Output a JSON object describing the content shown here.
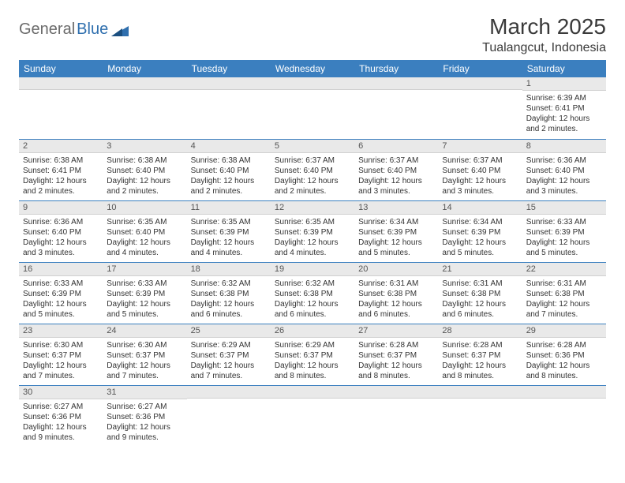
{
  "logo": {
    "part1": "General",
    "part2": "Blue"
  },
  "title": "March 2025",
  "location": "Tualangcut, Indonesia",
  "weekdays": [
    "Sunday",
    "Monday",
    "Tuesday",
    "Wednesday",
    "Thursday",
    "Friday",
    "Saturday"
  ],
  "colors": {
    "header_bg": "#3b7fbf",
    "header_text": "#ffffff",
    "daynum_bg": "#e9e9e9",
    "row_border": "#3b7fbf",
    "logo_gray": "#6b6b6b",
    "logo_blue": "#2f6fae"
  },
  "grid": [
    [
      {
        "day": "",
        "lines": []
      },
      {
        "day": "",
        "lines": []
      },
      {
        "day": "",
        "lines": []
      },
      {
        "day": "",
        "lines": []
      },
      {
        "day": "",
        "lines": []
      },
      {
        "day": "",
        "lines": []
      },
      {
        "day": "1",
        "lines": [
          "Sunrise: 6:39 AM",
          "Sunset: 6:41 PM",
          "Daylight: 12 hours and 2 minutes."
        ]
      }
    ],
    [
      {
        "day": "2",
        "lines": [
          "Sunrise: 6:38 AM",
          "Sunset: 6:41 PM",
          "Daylight: 12 hours and 2 minutes."
        ]
      },
      {
        "day": "3",
        "lines": [
          "Sunrise: 6:38 AM",
          "Sunset: 6:40 PM",
          "Daylight: 12 hours and 2 minutes."
        ]
      },
      {
        "day": "4",
        "lines": [
          "Sunrise: 6:38 AM",
          "Sunset: 6:40 PM",
          "Daylight: 12 hours and 2 minutes."
        ]
      },
      {
        "day": "5",
        "lines": [
          "Sunrise: 6:37 AM",
          "Sunset: 6:40 PM",
          "Daylight: 12 hours and 2 minutes."
        ]
      },
      {
        "day": "6",
        "lines": [
          "Sunrise: 6:37 AM",
          "Sunset: 6:40 PM",
          "Daylight: 12 hours and 3 minutes."
        ]
      },
      {
        "day": "7",
        "lines": [
          "Sunrise: 6:37 AM",
          "Sunset: 6:40 PM",
          "Daylight: 12 hours and 3 minutes."
        ]
      },
      {
        "day": "8",
        "lines": [
          "Sunrise: 6:36 AM",
          "Sunset: 6:40 PM",
          "Daylight: 12 hours and 3 minutes."
        ]
      }
    ],
    [
      {
        "day": "9",
        "lines": [
          "Sunrise: 6:36 AM",
          "Sunset: 6:40 PM",
          "Daylight: 12 hours and 3 minutes."
        ]
      },
      {
        "day": "10",
        "lines": [
          "Sunrise: 6:35 AM",
          "Sunset: 6:40 PM",
          "Daylight: 12 hours and 4 minutes."
        ]
      },
      {
        "day": "11",
        "lines": [
          "Sunrise: 6:35 AM",
          "Sunset: 6:39 PM",
          "Daylight: 12 hours and 4 minutes."
        ]
      },
      {
        "day": "12",
        "lines": [
          "Sunrise: 6:35 AM",
          "Sunset: 6:39 PM",
          "Daylight: 12 hours and 4 minutes."
        ]
      },
      {
        "day": "13",
        "lines": [
          "Sunrise: 6:34 AM",
          "Sunset: 6:39 PM",
          "Daylight: 12 hours and 5 minutes."
        ]
      },
      {
        "day": "14",
        "lines": [
          "Sunrise: 6:34 AM",
          "Sunset: 6:39 PM",
          "Daylight: 12 hours and 5 minutes."
        ]
      },
      {
        "day": "15",
        "lines": [
          "Sunrise: 6:33 AM",
          "Sunset: 6:39 PM",
          "Daylight: 12 hours and 5 minutes."
        ]
      }
    ],
    [
      {
        "day": "16",
        "lines": [
          "Sunrise: 6:33 AM",
          "Sunset: 6:39 PM",
          "Daylight: 12 hours and 5 minutes."
        ]
      },
      {
        "day": "17",
        "lines": [
          "Sunrise: 6:33 AM",
          "Sunset: 6:39 PM",
          "Daylight: 12 hours and 5 minutes."
        ]
      },
      {
        "day": "18",
        "lines": [
          "Sunrise: 6:32 AM",
          "Sunset: 6:38 PM",
          "Daylight: 12 hours and 6 minutes."
        ]
      },
      {
        "day": "19",
        "lines": [
          "Sunrise: 6:32 AM",
          "Sunset: 6:38 PM",
          "Daylight: 12 hours and 6 minutes."
        ]
      },
      {
        "day": "20",
        "lines": [
          "Sunrise: 6:31 AM",
          "Sunset: 6:38 PM",
          "Daylight: 12 hours and 6 minutes."
        ]
      },
      {
        "day": "21",
        "lines": [
          "Sunrise: 6:31 AM",
          "Sunset: 6:38 PM",
          "Daylight: 12 hours and 6 minutes."
        ]
      },
      {
        "day": "22",
        "lines": [
          "Sunrise: 6:31 AM",
          "Sunset: 6:38 PM",
          "Daylight: 12 hours and 7 minutes."
        ]
      }
    ],
    [
      {
        "day": "23",
        "lines": [
          "Sunrise: 6:30 AM",
          "Sunset: 6:37 PM",
          "Daylight: 12 hours and 7 minutes."
        ]
      },
      {
        "day": "24",
        "lines": [
          "Sunrise: 6:30 AM",
          "Sunset: 6:37 PM",
          "Daylight: 12 hours and 7 minutes."
        ]
      },
      {
        "day": "25",
        "lines": [
          "Sunrise: 6:29 AM",
          "Sunset: 6:37 PM",
          "Daylight: 12 hours and 7 minutes."
        ]
      },
      {
        "day": "26",
        "lines": [
          "Sunrise: 6:29 AM",
          "Sunset: 6:37 PM",
          "Daylight: 12 hours and 8 minutes."
        ]
      },
      {
        "day": "27",
        "lines": [
          "Sunrise: 6:28 AM",
          "Sunset: 6:37 PM",
          "Daylight: 12 hours and 8 minutes."
        ]
      },
      {
        "day": "28",
        "lines": [
          "Sunrise: 6:28 AM",
          "Sunset: 6:37 PM",
          "Daylight: 12 hours and 8 minutes."
        ]
      },
      {
        "day": "29",
        "lines": [
          "Sunrise: 6:28 AM",
          "Sunset: 6:36 PM",
          "Daylight: 12 hours and 8 minutes."
        ]
      }
    ],
    [
      {
        "day": "30",
        "lines": [
          "Sunrise: 6:27 AM",
          "Sunset: 6:36 PM",
          "Daylight: 12 hours and 9 minutes."
        ]
      },
      {
        "day": "31",
        "lines": [
          "Sunrise: 6:27 AM",
          "Sunset: 6:36 PM",
          "Daylight: 12 hours and 9 minutes."
        ]
      },
      {
        "day": "",
        "lines": []
      },
      {
        "day": "",
        "lines": []
      },
      {
        "day": "",
        "lines": []
      },
      {
        "day": "",
        "lines": []
      },
      {
        "day": "",
        "lines": []
      }
    ]
  ]
}
